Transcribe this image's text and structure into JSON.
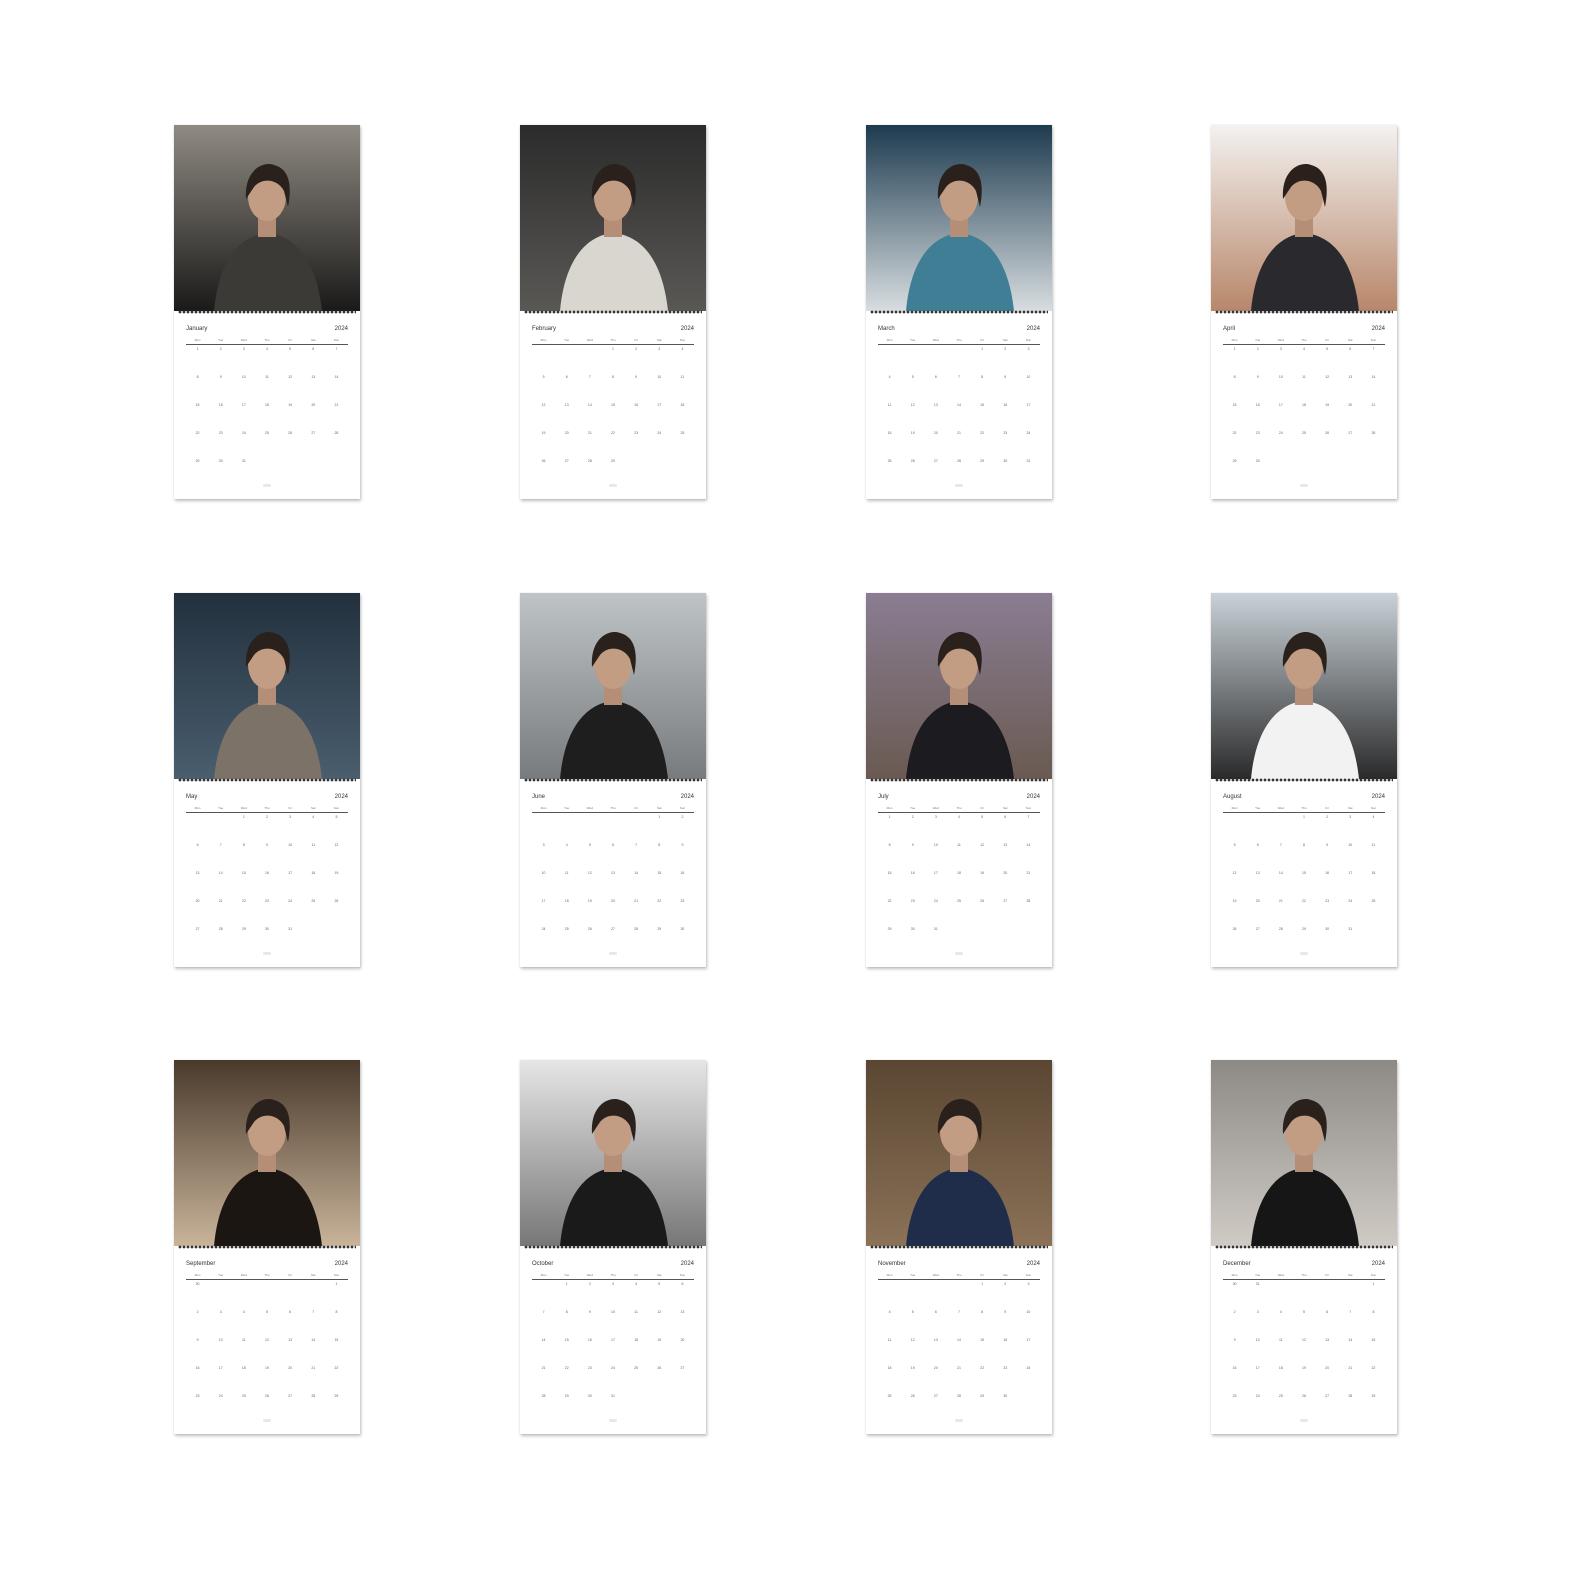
{
  "calendar": {
    "year": "2024",
    "weekdays": [
      "Mon",
      "Tue",
      "Wed",
      "Thu",
      "Fri",
      "Sat",
      "Sun"
    ],
    "months": [
      {
        "name": "January",
        "start": 0,
        "days": 31,
        "palette": [
          "#8f8a82",
          "#3c3a37",
          "#1b1a19"
        ]
      },
      {
        "name": "February",
        "start": 3,
        "days": 29,
        "palette": [
          "#2b2b2b",
          "#d9d6d0",
          "#5a5855"
        ]
      },
      {
        "name": "March",
        "start": 4,
        "days": 31,
        "palette": [
          "#1d3b4f",
          "#3f7e95",
          "#d7dde0"
        ]
      },
      {
        "name": "April",
        "start": 0,
        "days": 30,
        "palette": [
          "#f4f2f0",
          "#2a2a2e",
          "#b8866a"
        ]
      },
      {
        "name": "May",
        "start": 2,
        "days": 31,
        "palette": [
          "#22303d",
          "#7d7268",
          "#4a5e6e"
        ]
      },
      {
        "name": "June",
        "start": 5,
        "days": 30,
        "palette": [
          "#bfc4c6",
          "#1e1e1e",
          "#777b7e"
        ]
      },
      {
        "name": "July",
        "start": 0,
        "days": 31,
        "palette": [
          "#8a7d92",
          "#1c1b20",
          "#6a5a52"
        ]
      },
      {
        "name": "August",
        "start": 3,
        "days": 31,
        "palette": [
          "#c9d2d8",
          "#f2f2f2",
          "#2a2a2a"
        ]
      },
      {
        "name": "September",
        "start": 6,
        "days": 30,
        "palette": [
          "#4a3a2c",
          "#1c1612",
          "#c9b49a"
        ]
      },
      {
        "name": "October",
        "start": 1,
        "days": 31,
        "palette": [
          "#e6e6e6",
          "#1a1a1a",
          "#777777"
        ]
      },
      {
        "name": "November",
        "start": 4,
        "days": 30,
        "palette": [
          "#5a4632",
          "#1f2d4a",
          "#8b7258"
        ]
      },
      {
        "name": "December",
        "start": 6,
        "days": 31,
        "palette": [
          "#8d8a86",
          "#161616",
          "#cfcac4"
        ]
      }
    ]
  }
}
